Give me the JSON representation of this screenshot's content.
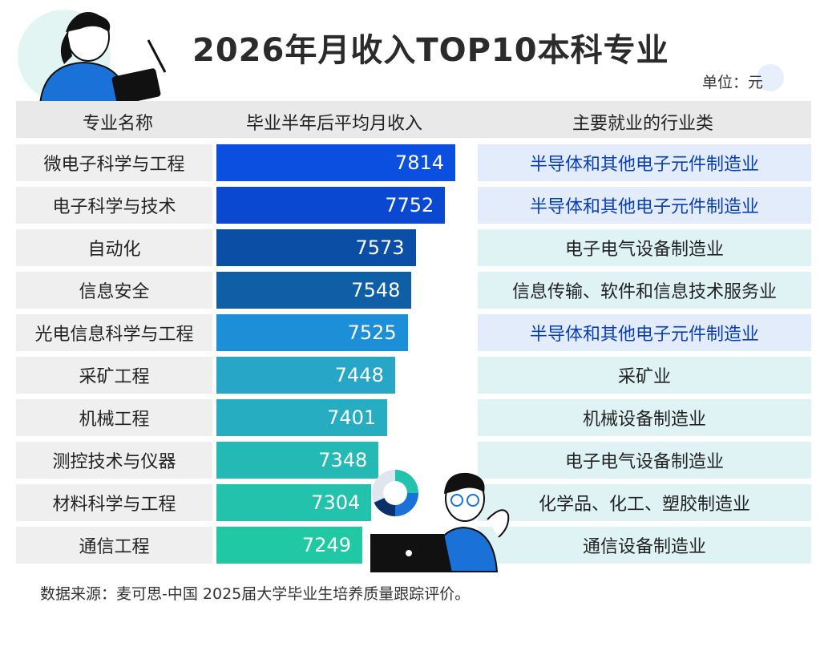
{
  "title": "2026年月收入TOP10本科专业",
  "unit": "单位：元",
  "headers": {
    "major": "专业名称",
    "income": "毕业半年后平均月收入",
    "industry": "主要就业的行业类"
  },
  "source": "数据来源：麦可思-中国 2025届大学毕业生培养质量跟踪评价。",
  "colors": {
    "bars": [
      "#0b4fe0",
      "#0a48d2",
      "#0b4ea6",
      "#0e5fa6",
      "#1d8fd8",
      "#27a6c8",
      "#26adc1",
      "#25b9b6",
      "#22c2ad",
      "#20c9a4"
    ],
    "industry_blue_bg": "#e3ecfb",
    "industry_teal_bg": "#e0f3f4",
    "industry_blue_text": "#0a3fb3",
    "industry_dark_text": "#222222"
  },
  "chart_data": {
    "type": "bar",
    "title": "2026年月收入TOP10本科专业",
    "unit": "单位：元",
    "categories": [
      "微电子科学与工程",
      "电子科学与技术",
      "自动化",
      "信息安全",
      "光电信息科学与工程",
      "采矿工程",
      "机械工程",
      "测控技术与仪器",
      "材料科学与工程",
      "通信工程"
    ],
    "series": [
      {
        "values": [
          7814,
          7752,
          7573,
          7548,
          7525,
          7448,
          7401,
          7348,
          7304,
          7249
        ]
      }
    ],
    "industries": [
      "半导体和其他电子元件制造业",
      "半导体和其他电子元件制造业",
      "电子电气设备制造业",
      "信息传输、软件和信息技术服务业",
      "半导体和其他电子元件制造业",
      "采矿业",
      "机械设备制造业",
      "电子电气设备制造业",
      "化学品、化工、塑胶制造业",
      "通信设备制造业"
    ],
    "industry_highlight": [
      true,
      true,
      false,
      false,
      true,
      false,
      false,
      false,
      false,
      false
    ]
  }
}
